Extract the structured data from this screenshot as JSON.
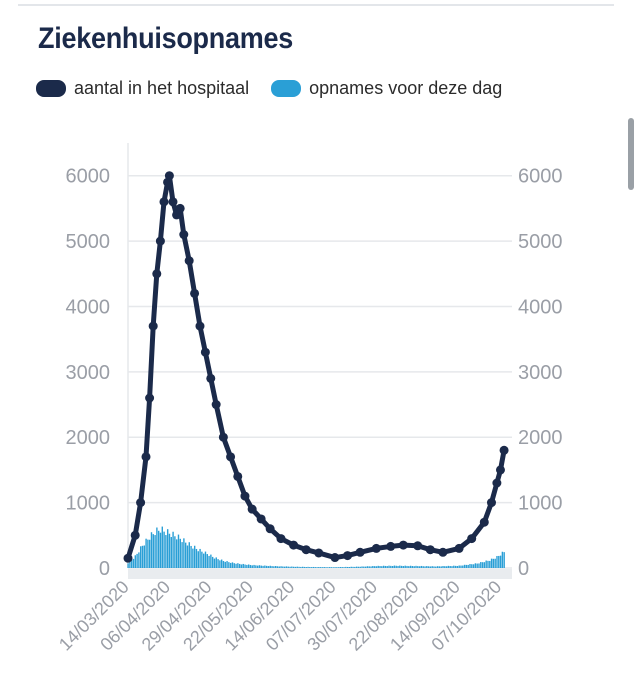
{
  "header": {
    "title": "Ziekenhuisopnames"
  },
  "legend": [
    {
      "label": "aantal in het hospitaal",
      "color": "#1b2a4a"
    },
    {
      "label": "opnames voor deze dag",
      "color": "#2a9fd6"
    }
  ],
  "chart_data": {
    "type": "line",
    "title": "Ziekenhuisopnames",
    "x_ticks": [
      "14/03/2020",
      "06/04/2020",
      "29/04/2020",
      "22/05/2020",
      "14/06/2020",
      "07/07/2020",
      "30/07/2020",
      "22/08/2020",
      "14/09/2020",
      "07/10/2020"
    ],
    "y_ticks": [
      0,
      1000,
      2000,
      3000,
      4000,
      5000,
      6000
    ],
    "ylim": [
      0,
      6500
    ],
    "y_axis_right": true,
    "grid": "horizontal",
    "series": [
      {
        "name": "aantal in het hospitaal",
        "type": "line",
        "color": "#1b2a4a",
        "points": [
          [
            "14/03/2020",
            150
          ],
          [
            "18/03/2020",
            500
          ],
          [
            "21/03/2020",
            1000
          ],
          [
            "24/03/2020",
            1700
          ],
          [
            "26/03/2020",
            2600
          ],
          [
            "28/03/2020",
            3700
          ],
          [
            "30/03/2020",
            4500
          ],
          [
            "01/04/2020",
            5000
          ],
          [
            "03/04/2020",
            5600
          ],
          [
            "05/04/2020",
            5900
          ],
          [
            "06/04/2020",
            6000
          ],
          [
            "08/04/2020",
            5600
          ],
          [
            "10/04/2020",
            5400
          ],
          [
            "12/04/2020",
            5500
          ],
          [
            "14/04/2020",
            5100
          ],
          [
            "17/04/2020",
            4700
          ],
          [
            "20/04/2020",
            4200
          ],
          [
            "23/04/2020",
            3700
          ],
          [
            "26/04/2020",
            3300
          ],
          [
            "29/04/2020",
            2900
          ],
          [
            "02/05/2020",
            2500
          ],
          [
            "06/05/2020",
            2000
          ],
          [
            "10/05/2020",
            1700
          ],
          [
            "14/05/2020",
            1400
          ],
          [
            "18/05/2020",
            1100
          ],
          [
            "22/05/2020",
            900
          ],
          [
            "27/05/2020",
            750
          ],
          [
            "01/06/2020",
            600
          ],
          [
            "07/06/2020",
            450
          ],
          [
            "14/06/2020",
            350
          ],
          [
            "21/06/2020",
            280
          ],
          [
            "28/06/2020",
            230
          ],
          [
            "07/07/2020",
            160
          ],
          [
            "14/07/2020",
            190
          ],
          [
            "21/07/2020",
            240
          ],
          [
            "30/07/2020",
            300
          ],
          [
            "07/08/2020",
            330
          ],
          [
            "14/08/2020",
            350
          ],
          [
            "22/08/2020",
            340
          ],
          [
            "29/08/2020",
            280
          ],
          [
            "05/09/2020",
            240
          ],
          [
            "14/09/2020",
            300
          ],
          [
            "21/09/2020",
            450
          ],
          [
            "28/09/2020",
            700
          ],
          [
            "02/10/2020",
            1000
          ],
          [
            "05/10/2020",
            1300
          ],
          [
            "07/10/2020",
            1500
          ],
          [
            "09/10/2020",
            1800
          ]
        ]
      },
      {
        "name": "opnames voor deze dag",
        "type": "bar",
        "color": "#2a9fd6",
        "points": [
          [
            "14/03/2020",
            80
          ],
          [
            "18/03/2020",
            180
          ],
          [
            "22/03/2020",
            350
          ],
          [
            "26/03/2020",
            480
          ],
          [
            "29/03/2020",
            560
          ],
          [
            "01/04/2020",
            600
          ],
          [
            "04/04/2020",
            560
          ],
          [
            "06/04/2020",
            540
          ],
          [
            "09/04/2020",
            500
          ],
          [
            "12/04/2020",
            460
          ],
          [
            "15/04/2020",
            400
          ],
          [
            "19/04/2020",
            330
          ],
          [
            "23/04/2020",
            270
          ],
          [
            "27/04/2020",
            220
          ],
          [
            "01/05/2020",
            160
          ],
          [
            "06/05/2020",
            110
          ],
          [
            "11/05/2020",
            80
          ],
          [
            "16/05/2020",
            60
          ],
          [
            "22/05/2020",
            45
          ],
          [
            "29/05/2020",
            35
          ],
          [
            "07/06/2020",
            25
          ],
          [
            "14/06/2020",
            20
          ],
          [
            "24/06/2020",
            15
          ],
          [
            "07/07/2020",
            12
          ],
          [
            "20/07/2020",
            20
          ],
          [
            "30/07/2020",
            30
          ],
          [
            "10/08/2020",
            35
          ],
          [
            "22/08/2020",
            30
          ],
          [
            "01/09/2020",
            25
          ],
          [
            "14/09/2020",
            35
          ],
          [
            "24/09/2020",
            70
          ],
          [
            "01/10/2020",
            120
          ],
          [
            "05/10/2020",
            170
          ],
          [
            "09/10/2020",
            250
          ]
        ]
      }
    ]
  }
}
